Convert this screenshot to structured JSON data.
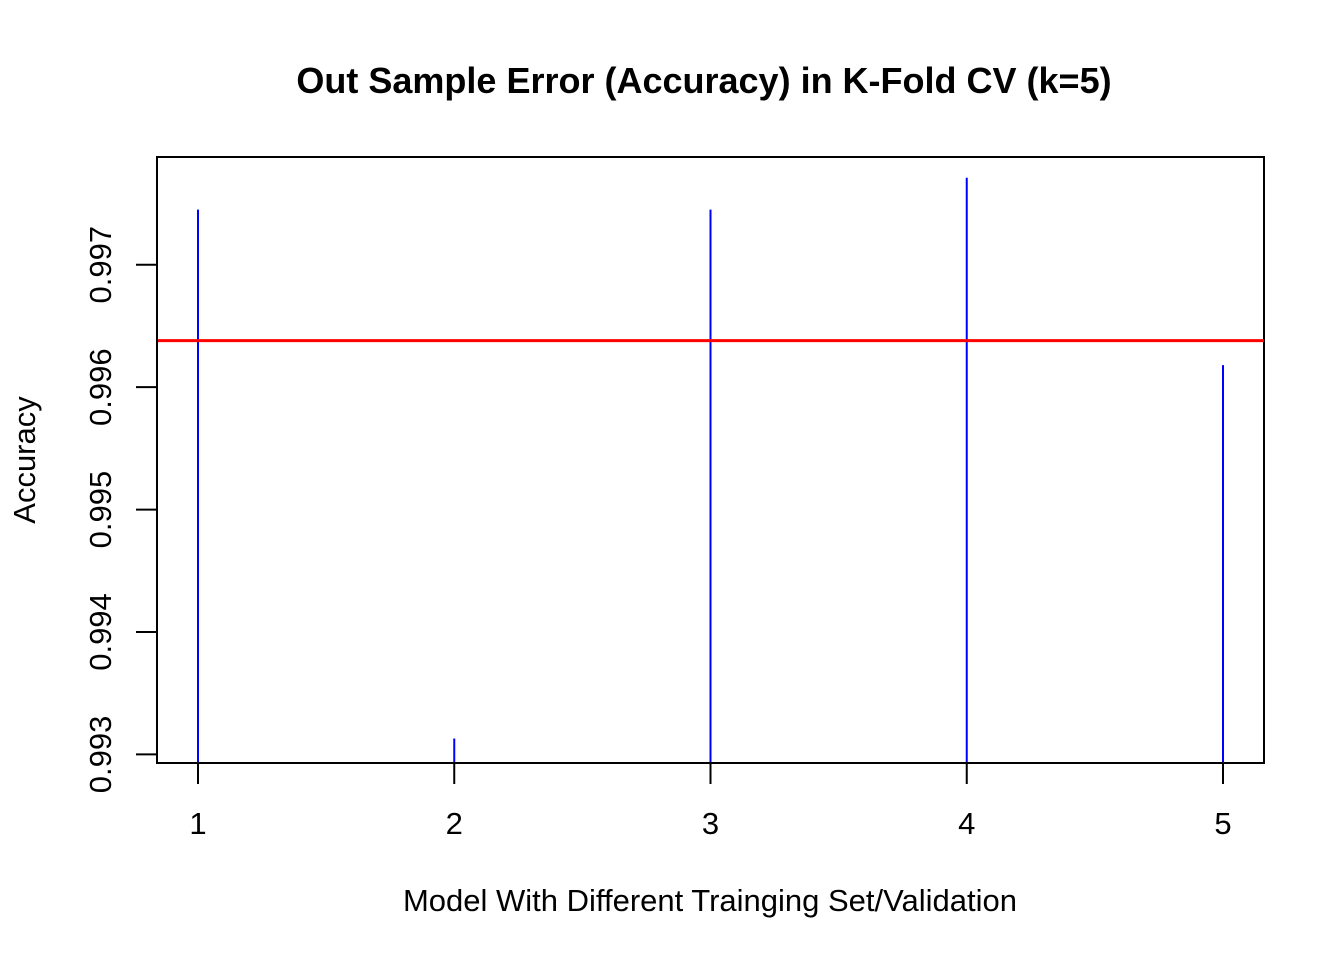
{
  "chart_data": {
    "type": "bar",
    "title": "Out Sample Error (Accuracy) in K-Fold CV (k=5)",
    "xlabel": "Model With Different Trainging Set/Validation",
    "ylabel": "Accuracy",
    "x": [
      1,
      2,
      3,
      4,
      5
    ],
    "x_ticks": [
      "1",
      "2",
      "3",
      "4",
      "5"
    ],
    "values": [
      0.99745,
      0.99313,
      0.99745,
      0.99771,
      0.99618
    ],
    "y_ticks": [
      "0.993",
      "0.994",
      "0.995",
      "0.996",
      "0.997"
    ],
    "xlim": [
      0.84,
      5.16
    ],
    "ylim": [
      0.99293,
      0.99788
    ],
    "mean_line": 0.99638,
    "grid": false,
    "colors": {
      "bars": "#0000ff",
      "mean_line": "#ff0000",
      "axes": "#000000"
    }
  }
}
